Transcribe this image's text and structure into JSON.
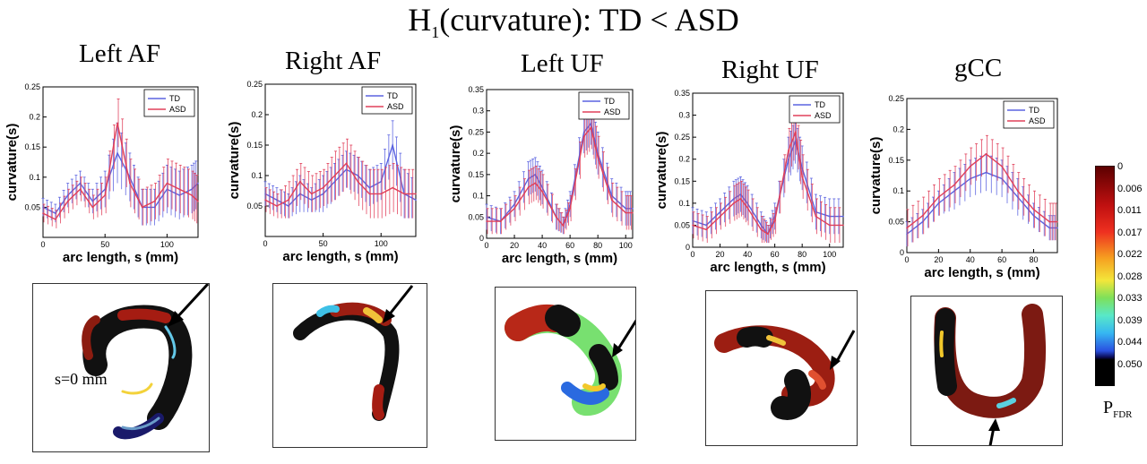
{
  "figure": {
    "title_main": "H",
    "title_sub": "1",
    "title_rest": "(curvature): TD < ASD",
    "colorbar": {
      "label_main": "P",
      "label_sub": "FDR",
      "ticks": [
        "0",
        "0.006",
        "0.011",
        "0.017",
        "0.022",
        "0.028",
        "0.033",
        "0.039",
        "0.044",
        "0.050"
      ]
    },
    "annotation": "s=0 mm",
    "colors": {
      "TD": "#5b63e0",
      "ASD": "#e0405a"
    }
  },
  "chart_data": [
    {
      "type": "line",
      "title": "Left AF",
      "xlabel": "arc length, s (mm)",
      "ylabel": "curvature(s)",
      "xlim": [
        0,
        125
      ],
      "ylim": [
        0,
        0.25
      ],
      "xticks": [
        0,
        50,
        100
      ],
      "yticks": [
        0.05,
        0.1,
        0.15,
        0.2,
        0.25
      ],
      "legend": "top-right",
      "x": [
        0,
        10,
        20,
        30,
        40,
        50,
        60,
        70,
        80,
        90,
        100,
        110,
        120,
        125
      ],
      "series": [
        {
          "name": "TD",
          "values": [
            0.05,
            0.04,
            0.07,
            0.09,
            0.06,
            0.08,
            0.14,
            0.1,
            0.05,
            0.05,
            0.08,
            0.07,
            0.08,
            0.09
          ],
          "err": [
            0.015,
            0.015,
            0.02,
            0.02,
            0.02,
            0.03,
            0.05,
            0.04,
            0.03,
            0.03,
            0.04,
            0.04,
            0.04,
            0.04
          ]
        },
        {
          "name": "ASD",
          "values": [
            0.04,
            0.03,
            0.06,
            0.08,
            0.05,
            0.07,
            0.19,
            0.09,
            0.05,
            0.06,
            0.09,
            0.08,
            0.07,
            0.06
          ],
          "err": [
            0.015,
            0.015,
            0.02,
            0.02,
            0.02,
            0.03,
            0.04,
            0.04,
            0.03,
            0.03,
            0.04,
            0.04,
            0.04,
            0.04
          ]
        }
      ]
    },
    {
      "type": "line",
      "title": "Right AF",
      "xlabel": "arc length, s (mm)",
      "ylabel": "curvature(s)",
      "xlim": [
        0,
        130
      ],
      "ylim": [
        0,
        0.25
      ],
      "xticks": [
        0,
        50,
        100
      ],
      "yticks": [
        0.05,
        0.1,
        0.15,
        0.2,
        0.25
      ],
      "legend": "top-right",
      "x": [
        0,
        10,
        20,
        30,
        40,
        50,
        60,
        70,
        80,
        90,
        100,
        110,
        120,
        130
      ],
      "series": [
        {
          "name": "TD",
          "values": [
            0.07,
            0.06,
            0.05,
            0.07,
            0.06,
            0.07,
            0.09,
            0.11,
            0.1,
            0.08,
            0.09,
            0.15,
            0.07,
            0.06
          ],
          "err": [
            0.02,
            0.02,
            0.02,
            0.03,
            0.02,
            0.03,
            0.03,
            0.03,
            0.03,
            0.03,
            0.03,
            0.04,
            0.04,
            0.03
          ]
        },
        {
          "name": "ASD",
          "values": [
            0.06,
            0.05,
            0.06,
            0.09,
            0.07,
            0.08,
            0.1,
            0.12,
            0.09,
            0.07,
            0.07,
            0.08,
            0.07,
            0.07
          ],
          "err": [
            0.02,
            0.02,
            0.03,
            0.03,
            0.03,
            0.03,
            0.04,
            0.04,
            0.04,
            0.04,
            0.04,
            0.04,
            0.04,
            0.04
          ]
        }
      ]
    },
    {
      "type": "line",
      "title": "Left UF",
      "xlabel": "arc length, s (mm)",
      "ylabel": "curvature(s)",
      "xlim": [
        0,
        105
      ],
      "ylim": [
        0,
        0.35
      ],
      "xticks": [
        0,
        20,
        40,
        60,
        80,
        100
      ],
      "yticks": [
        0,
        0.05,
        0.1,
        0.15,
        0.2,
        0.25,
        0.3,
        0.35
      ],
      "legend": "top-right",
      "x": [
        0,
        10,
        20,
        30,
        35,
        40,
        50,
        55,
        60,
        70,
        75,
        80,
        90,
        100,
        105
      ],
      "series": [
        {
          "name": "TD",
          "values": [
            0.05,
            0.04,
            0.08,
            0.14,
            0.15,
            0.12,
            0.05,
            0.03,
            0.08,
            0.25,
            0.27,
            0.2,
            0.1,
            0.07,
            0.07
          ],
          "err": [
            0.03,
            0.03,
            0.03,
            0.04,
            0.04,
            0.04,
            0.03,
            0.02,
            0.03,
            0.05,
            0.05,
            0.05,
            0.04,
            0.04,
            0.04
          ]
        },
        {
          "name": "ASD",
          "values": [
            0.04,
            0.04,
            0.07,
            0.12,
            0.13,
            0.11,
            0.05,
            0.03,
            0.07,
            0.24,
            0.26,
            0.19,
            0.09,
            0.06,
            0.06
          ],
          "err": [
            0.03,
            0.03,
            0.03,
            0.04,
            0.04,
            0.04,
            0.03,
            0.02,
            0.03,
            0.05,
            0.05,
            0.05,
            0.04,
            0.04,
            0.04
          ]
        }
      ]
    },
    {
      "type": "line",
      "title": "Right UF",
      "xlabel": "arc length, s (mm)",
      "ylabel": "curvature(s)",
      "xlim": [
        0,
        110
      ],
      "ylim": [
        0,
        0.35
      ],
      "xticks": [
        0,
        20,
        40,
        60,
        80,
        100
      ],
      "yticks": [
        0,
        0.05,
        0.1,
        0.15,
        0.2,
        0.25,
        0.3,
        0.35
      ],
      "legend": "top-right",
      "x": [
        0,
        10,
        20,
        30,
        35,
        40,
        50,
        55,
        60,
        70,
        75,
        80,
        90,
        100,
        110
      ],
      "series": [
        {
          "name": "TD",
          "values": [
            0.06,
            0.05,
            0.08,
            0.11,
            0.12,
            0.1,
            0.05,
            0.03,
            0.07,
            0.2,
            0.24,
            0.18,
            0.08,
            0.07,
            0.07
          ],
          "err": [
            0.03,
            0.03,
            0.03,
            0.04,
            0.04,
            0.04,
            0.03,
            0.02,
            0.03,
            0.05,
            0.05,
            0.05,
            0.04,
            0.04,
            0.04
          ]
        },
        {
          "name": "ASD",
          "values": [
            0.05,
            0.04,
            0.07,
            0.1,
            0.11,
            0.09,
            0.04,
            0.03,
            0.06,
            0.22,
            0.26,
            0.16,
            0.07,
            0.05,
            0.05
          ],
          "err": [
            0.03,
            0.03,
            0.03,
            0.04,
            0.04,
            0.04,
            0.03,
            0.02,
            0.03,
            0.05,
            0.05,
            0.05,
            0.04,
            0.04,
            0.04
          ]
        }
      ]
    },
    {
      "type": "line",
      "title": "gCC",
      "xlabel": "arc length, s (mm)",
      "ylabel": "curvature(s)",
      "xlim": [
        0,
        95
      ],
      "ylim": [
        0,
        0.25
      ],
      "xticks": [
        0,
        20,
        40,
        60,
        80
      ],
      "yticks": [
        0,
        0.05,
        0.1,
        0.15,
        0.2,
        0.25
      ],
      "legend": "top-right",
      "x": [
        0,
        10,
        20,
        30,
        40,
        50,
        60,
        70,
        80,
        90,
        95
      ],
      "series": [
        {
          "name": "TD",
          "values": [
            0.03,
            0.05,
            0.08,
            0.1,
            0.12,
            0.13,
            0.12,
            0.09,
            0.06,
            0.04,
            0.04
          ],
          "err": [
            0.02,
            0.02,
            0.02,
            0.03,
            0.03,
            0.03,
            0.03,
            0.03,
            0.02,
            0.02,
            0.02
          ]
        },
        {
          "name": "ASD",
          "values": [
            0.04,
            0.06,
            0.09,
            0.11,
            0.14,
            0.16,
            0.14,
            0.1,
            0.07,
            0.05,
            0.05
          ],
          "err": [
            0.03,
            0.03,
            0.03,
            0.03,
            0.03,
            0.03,
            0.03,
            0.03,
            0.03,
            0.03,
            0.03
          ]
        }
      ]
    }
  ]
}
